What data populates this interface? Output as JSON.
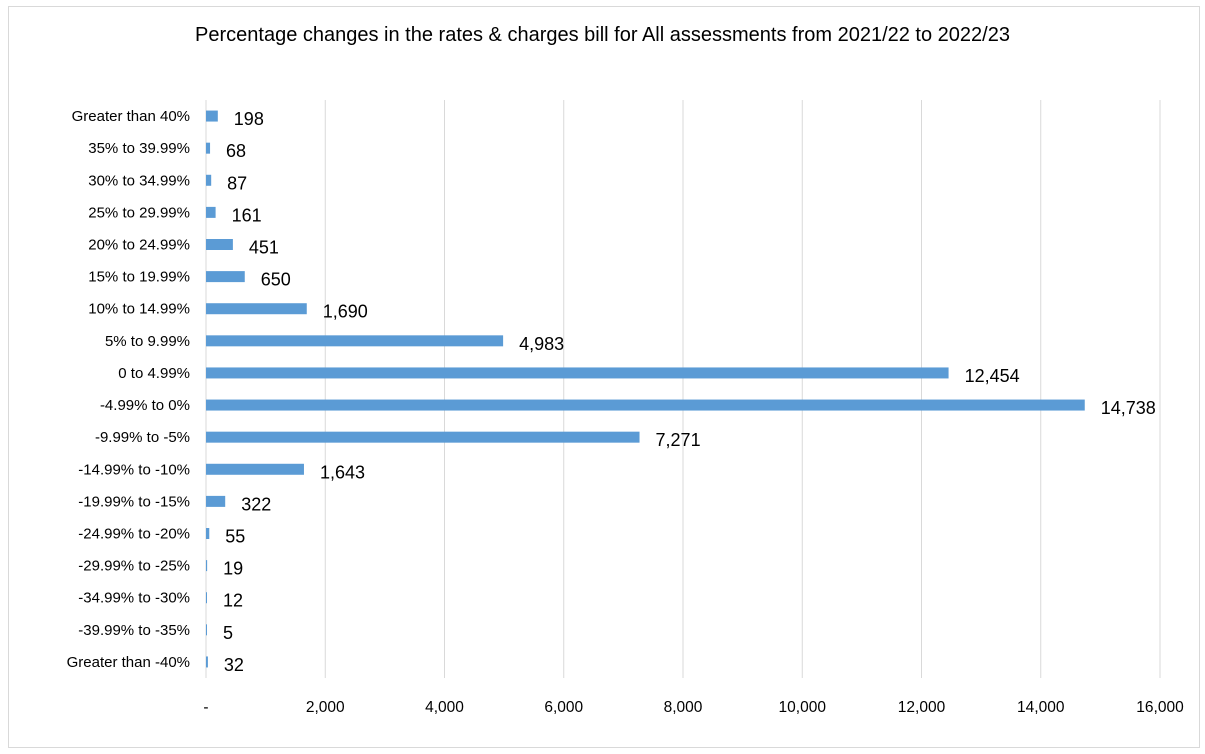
{
  "chart_data": {
    "type": "bar",
    "orientation": "horizontal",
    "title": "Percentage changes in the rates & charges bill for All assessments from 2021/22 to 2022/23",
    "xlabel": "",
    "ylabel": "",
    "xlim": [
      0,
      16000
    ],
    "x_ticks": [
      0,
      2000,
      4000,
      6000,
      8000,
      10000,
      12000,
      14000,
      16000
    ],
    "x_tick_labels": [
      "-",
      "2,000",
      "4,000",
      "6,000",
      "8,000",
      "10,000",
      "12,000",
      "14,000",
      "16,000"
    ],
    "grid": "vertical",
    "legend": "none",
    "bar_color": "#5b9bd5",
    "categories": [
      "Greater than 40%",
      "35% to 39.99%",
      "30% to 34.99%",
      "25% to 29.99%",
      "20% to 24.99%",
      "15% to 19.99%",
      "10% to 14.99%",
      "5% to 9.99%",
      "0 to 4.99%",
      "-4.99% to 0%",
      "-9.99% to -5%",
      "-14.99% to -10%",
      "-19.99% to -15%",
      "-24.99% to -20%",
      "-29.99% to -25%",
      "-34.99% to -30%",
      "-39.99% to -35%",
      "Greater than -40%"
    ],
    "values": [
      198,
      68,
      87,
      161,
      451,
      650,
      1690,
      4983,
      12454,
      14738,
      7271,
      1643,
      322,
      55,
      19,
      12,
      5,
      32
    ],
    "value_labels": [
      "198",
      "68",
      "87",
      "161",
      "451",
      "650",
      "1,690",
      "4,983",
      "12,454",
      "14,738",
      "7,271",
      "1,643",
      "322",
      "55",
      "19",
      "12",
      "5",
      "32"
    ]
  }
}
